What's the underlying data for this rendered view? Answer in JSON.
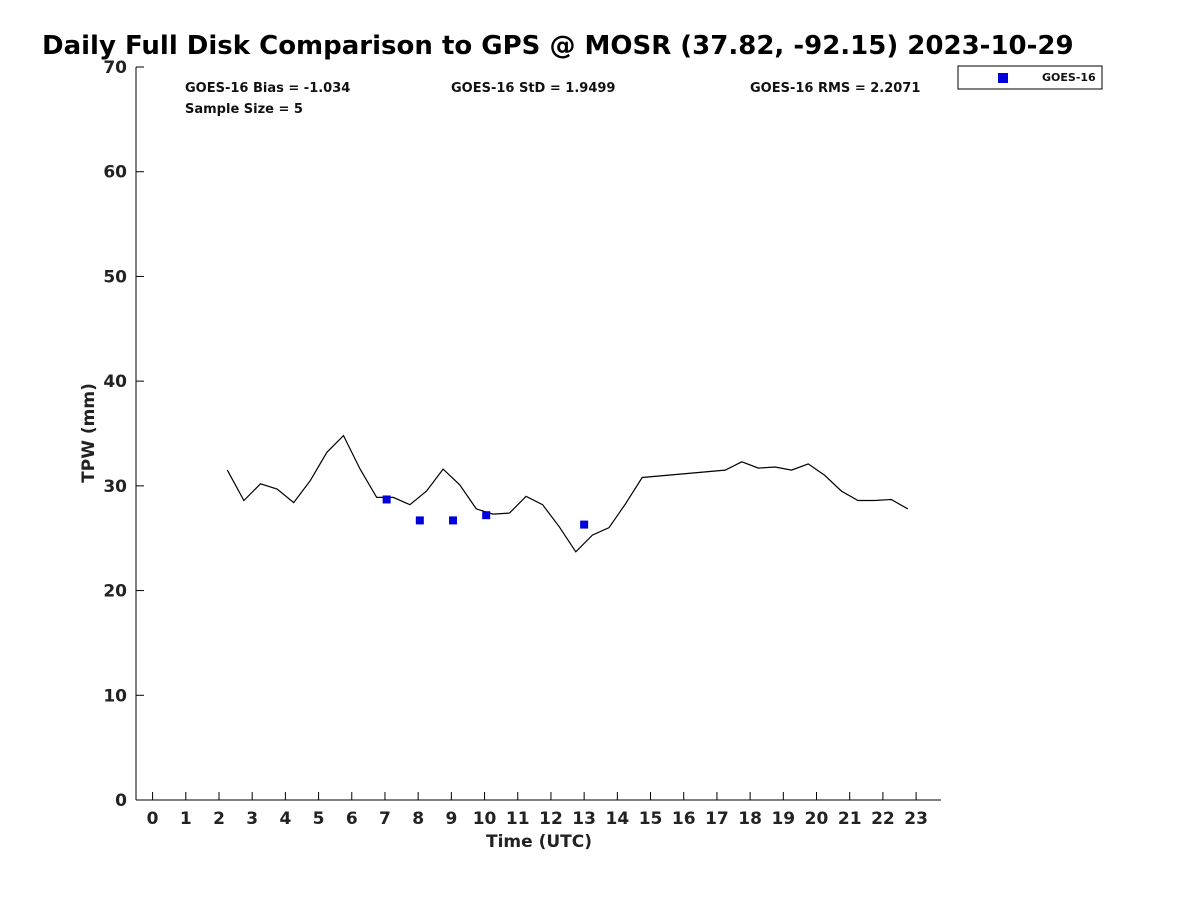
{
  "chart_data": {
    "type": "line",
    "title": "Daily Full Disk Comparison to GPS @ MOSR (37.82, -92.15) 2023-10-29",
    "xlabel": "Time (UTC)",
    "ylabel": "TPW (mm)",
    "xlim": [
      -0.5,
      23.75
    ],
    "ylim": [
      0,
      70
    ],
    "x_ticks": [
      0,
      1,
      2,
      3,
      4,
      5,
      6,
      7,
      8,
      9,
      10,
      11,
      12,
      13,
      14,
      15,
      16,
      17,
      18,
      19,
      20,
      21,
      22,
      23
    ],
    "y_ticks": [
      0,
      10,
      20,
      30,
      40,
      50,
      60,
      70
    ],
    "grid": false,
    "legend_position": "top-right",
    "series": [
      {
        "kind": "line",
        "color": "#000000",
        "x": [
          2.25,
          2.75,
          3.25,
          3.75,
          4.25,
          4.75,
          5.25,
          5.75,
          6.25,
          6.75,
          7.25,
          7.75,
          8.25,
          8.75,
          9.25,
          9.75,
          10.25,
          10.75,
          11.25,
          11.75,
          12.25,
          12.75,
          13.25,
          13.75,
          14.25,
          14.75,
          17.25,
          17.75,
          18.25,
          18.75,
          19.25,
          19.75,
          20.25,
          20.75,
          21.25,
          21.75,
          22.25,
          22.75
        ],
        "y": [
          31.5,
          28.6,
          30.2,
          29.7,
          28.4,
          30.5,
          33.2,
          34.8,
          31.6,
          28.9,
          28.9,
          28.2,
          29.5,
          31.6,
          30.1,
          27.8,
          27.3,
          27.4,
          29.0,
          28.2,
          26.1,
          23.7,
          25.3,
          26.0,
          28.3,
          30.8,
          31.5,
          32.3,
          31.7,
          31.8,
          31.5,
          32.1,
          31.0,
          29.5,
          28.6,
          28.6,
          28.7,
          27.8
        ]
      },
      {
        "kind": "scatter",
        "name": "GOES-16",
        "color": "#0000dd",
        "x": [
          7.05,
          8.05,
          9.05,
          10.05,
          13.0
        ],
        "y": [
          28.7,
          26.7,
          26.7,
          27.2,
          26.3
        ]
      }
    ],
    "annotations": {
      "bias": "GOES-16 Bias = -1.034",
      "std": "GOES-16 StD = 1.9499",
      "rms": "GOES-16 RMS = 2.2071",
      "sample": "Sample Size = 5"
    },
    "legend": {
      "label": "GOES-16"
    }
  }
}
